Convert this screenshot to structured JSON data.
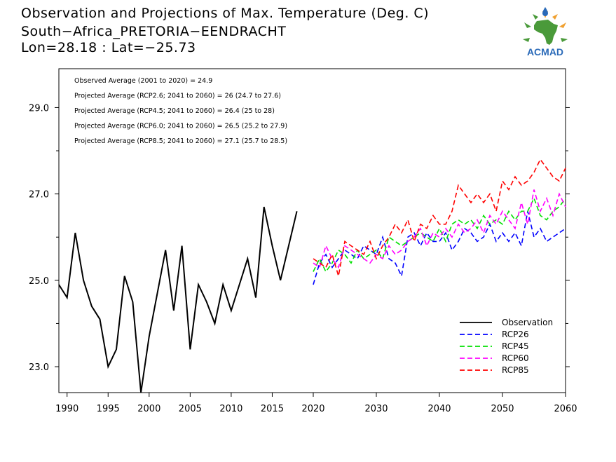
{
  "header": {
    "line1": "Observation and Projections of Max. Temperature (Deg. C)",
    "line2": "South−Africa_PRETORIA−EENDRACHT",
    "line3": "Lon=28.18 : Lat=−25.73"
  },
  "logo": {
    "text": "ACMAD",
    "icon": "africa-map-logo",
    "colors": {
      "green": "#4a9a3a",
      "orange": "#f0a030",
      "blue": "#2a6ab8"
    }
  },
  "chart_data": {
    "type": "line",
    "title": "Observation and Projections of Max. Temperature (Deg. C)",
    "xlim": [
      1989,
      2060
    ],
    "ylim": [
      22.4,
      29.9
    ],
    "x_ticks": [
      1990,
      1995,
      2000,
      2005,
      2010,
      2015,
      2020,
      2030,
      2040,
      2050,
      2060
    ],
    "y_ticks": [
      23.0,
      25.0,
      27.0,
      29.0
    ],
    "y_tick_labels": [
      "23.0",
      "25.0",
      "27.0",
      "29.0"
    ],
    "annotations": [
      "Observed Average (2001 to 2020) = 24.9",
      "Projected Average (RCP2.6; 2041 to 2060) = 26 (24.7 to 27.6)",
      "Projected Average (RCP4.5; 2041 to 2060) = 26.4 (25 to 28)",
      "Projected Average (RCP6.0; 2041 to 2060) = 26.5 (25.2 to 27.9)",
      "Projected Average (RCP8.5; 2041 to 2060) = 27.1 (25.7 to 28.5)"
    ],
    "legend_position": "bottom-right",
    "series": [
      {
        "name": "Observation",
        "color": "#000000",
        "dash": "solid",
        "x": [
          1989,
          1990,
          1991,
          1992,
          1993,
          1994,
          1995,
          1996,
          1997,
          1998,
          1999,
          2000,
          2001,
          2002,
          2003,
          2004,
          2005,
          2006,
          2007,
          2008,
          2009,
          2010,
          2011,
          2012,
          2013,
          2014,
          2015,
          2016,
          2017,
          2018,
          2019,
          2020
        ],
        "values": [
          24.9,
          24.6,
          26.1,
          25.0,
          24.4,
          24.1,
          23.0,
          23.4,
          25.1,
          24.5,
          22.4,
          23.7,
          24.7,
          25.7,
          24.3,
          25.8,
          23.4,
          24.9,
          24.5,
          24.0,
          24.9,
          24.3,
          24.9,
          25.5,
          24.6,
          26.7,
          25.8,
          25.0,
          25.8,
          26.6,
          null,
          null
        ]
      },
      {
        "name": "RCP26",
        "color": "#0000ff",
        "dash": "dashed",
        "x": [
          2020,
          2021,
          2022,
          2023,
          2024,
          2025,
          2026,
          2027,
          2028,
          2029,
          2030,
          2031,
          2032,
          2033,
          2034,
          2035,
          2036,
          2037,
          2038,
          2039,
          2040,
          2041,
          2042,
          2043,
          2044,
          2045,
          2046,
          2047,
          2048,
          2049,
          2050,
          2051,
          2052,
          2053,
          2054,
          2055,
          2056,
          2057,
          2058,
          2059,
          2060
        ],
        "values": [
          24.9,
          25.4,
          25.6,
          25.3,
          25.5,
          25.7,
          25.6,
          25.5,
          25.8,
          25.7,
          25.6,
          26.0,
          25.5,
          25.4,
          25.1,
          26.0,
          26.1,
          25.8,
          26.1,
          25.9,
          25.9,
          26.1,
          25.7,
          25.9,
          26.2,
          26.1,
          25.9,
          26.0,
          26.3,
          25.9,
          26.1,
          25.9,
          26.1,
          25.8,
          26.6,
          26.0,
          26.2,
          25.9,
          26.0,
          26.1,
          26.2
        ]
      },
      {
        "name": "RCP45",
        "color": "#00e000",
        "dash": "dashed",
        "x": [
          2020,
          2021,
          2022,
          2023,
          2024,
          2025,
          2026,
          2027,
          2028,
          2029,
          2030,
          2031,
          2032,
          2033,
          2034,
          2035,
          2036,
          2037,
          2038,
          2039,
          2040,
          2041,
          2042,
          2043,
          2044,
          2045,
          2046,
          2047,
          2048,
          2049,
          2050,
          2051,
          2052,
          2053,
          2054,
          2055,
          2056,
          2057,
          2058,
          2059,
          2060
        ],
        "values": [
          25.2,
          25.5,
          25.2,
          25.4,
          25.7,
          25.6,
          25.4,
          25.7,
          25.5,
          25.6,
          25.7,
          25.5,
          26.0,
          25.9,
          25.8,
          25.9,
          26.0,
          26.1,
          26.0,
          25.9,
          26.2,
          25.9,
          26.3,
          26.4,
          26.3,
          26.4,
          26.2,
          26.5,
          26.3,
          26.4,
          26.3,
          26.6,
          26.4,
          26.6,
          26.6,
          26.9,
          26.5,
          26.4,
          26.6,
          26.7,
          26.9
        ]
      },
      {
        "name": "RCP60",
        "color": "#ff00ff",
        "dash": "dashed",
        "x": [
          2020,
          2021,
          2022,
          2023,
          2024,
          2025,
          2026,
          2027,
          2028,
          2029,
          2030,
          2031,
          2032,
          2033,
          2034,
          2035,
          2036,
          2037,
          2038,
          2039,
          2040,
          2041,
          2042,
          2043,
          2044,
          2045,
          2046,
          2047,
          2048,
          2049,
          2050,
          2051,
          2052,
          2053,
          2054,
          2055,
          2056,
          2057,
          2058,
          2059,
          2060
        ],
        "values": [
          25.4,
          25.3,
          25.8,
          25.5,
          25.3,
          25.8,
          25.7,
          25.6,
          25.5,
          25.4,
          25.6,
          25.5,
          25.8,
          25.6,
          25.7,
          25.9,
          26.0,
          26.2,
          25.8,
          26.1,
          26.0,
          26.2,
          26.0,
          26.3,
          26.1,
          26.2,
          26.4,
          26.1,
          26.5,
          26.3,
          26.6,
          26.4,
          26.2,
          26.8,
          26.3,
          27.1,
          26.6,
          26.9,
          26.5,
          27.0,
          26.7
        ]
      },
      {
        "name": "RCP85",
        "color": "#ff0000",
        "dash": "dashed",
        "x": [
          2020,
          2021,
          2022,
          2023,
          2024,
          2025,
          2026,
          2027,
          2028,
          2029,
          2030,
          2031,
          2032,
          2033,
          2034,
          2035,
          2036,
          2037,
          2038,
          2039,
          2040,
          2041,
          2042,
          2043,
          2044,
          2045,
          2046,
          2047,
          2048,
          2049,
          2050,
          2051,
          2052,
          2053,
          2054,
          2055,
          2056,
          2057,
          2058,
          2059,
          2060
        ],
        "values": [
          25.5,
          25.4,
          25.3,
          25.6,
          25.1,
          25.9,
          25.8,
          25.7,
          25.6,
          25.9,
          25.5,
          25.8,
          26.0,
          26.3,
          26.1,
          26.4,
          25.9,
          26.3,
          26.2,
          26.5,
          26.3,
          26.3,
          26.6,
          27.2,
          27.0,
          26.8,
          27.0,
          26.8,
          27.0,
          26.6,
          27.3,
          27.1,
          27.4,
          27.2,
          27.3,
          27.5,
          27.8,
          27.6,
          27.4,
          27.3,
          27.6
        ]
      }
    ]
  }
}
